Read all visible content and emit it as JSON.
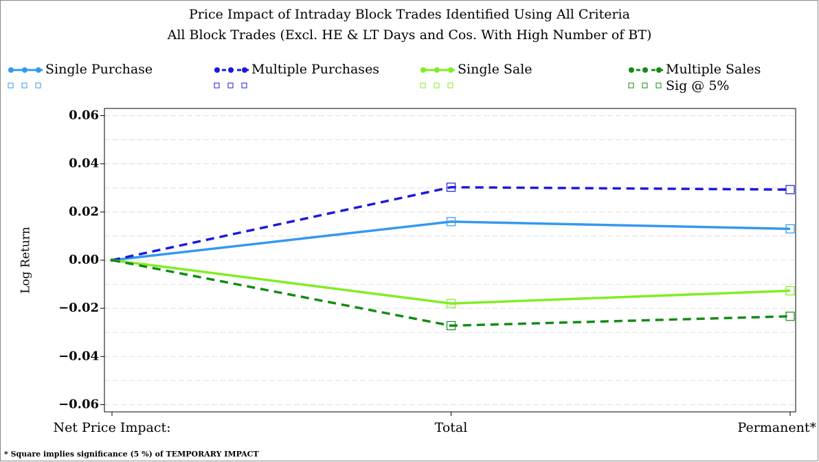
{
  "chart_data": {
    "type": "line",
    "title": "Price Impact of Intraday Block Trades Identified Using All Criteria",
    "subtitle": "All Block Trades (Excl. HE & LT Days and Cos. With High Number of BT)",
    "y_label": "Log Return",
    "categories": [
      "Net Price Impact:",
      "Total",
      "Permanent*"
    ],
    "series": [
      {
        "name": "Single Purchase",
        "color": "#3399ee",
        "dashed": false,
        "values": [
          0,
          0.016,
          0.013
        ],
        "significant": [
          false,
          true,
          true
        ]
      },
      {
        "name": "Multiple Purchases",
        "color": "#1a1adc",
        "dashed": true,
        "values": [
          0,
          0.0303,
          0.0293
        ],
        "significant": [
          false,
          true,
          true
        ]
      },
      {
        "name": "Single Sale",
        "color": "#7fee22",
        "dashed": false,
        "values": [
          0,
          -0.018,
          -0.0127
        ],
        "significant": [
          false,
          true,
          true
        ]
      },
      {
        "name": "Multiple Sales",
        "color": "#148a14",
        "dashed": true,
        "values": [
          0,
          -0.0272,
          -0.0233
        ],
        "significant": [
          false,
          true,
          true
        ]
      }
    ],
    "significance_label": "Sig @ 5%",
    "ylim": [
      -0.063,
      0.063
    ],
    "yticks": [
      {
        "value": -0.06,
        "label": "−0.06"
      },
      {
        "value": -0.04,
        "label": "−0.04"
      },
      {
        "value": -0.02,
        "label": "−0.02"
      },
      {
        "value": 0,
        "label": "0.00"
      },
      0.02,
      0.04,
      0.06
    ],
    "minor_yticks": [
      -0.05,
      -0.03,
      -0.01,
      0.01,
      0.03,
      0.05
    ],
    "grid": true,
    "footnote": "* Square implies significance (5 %) of TEMPORARY IMPACT"
  }
}
